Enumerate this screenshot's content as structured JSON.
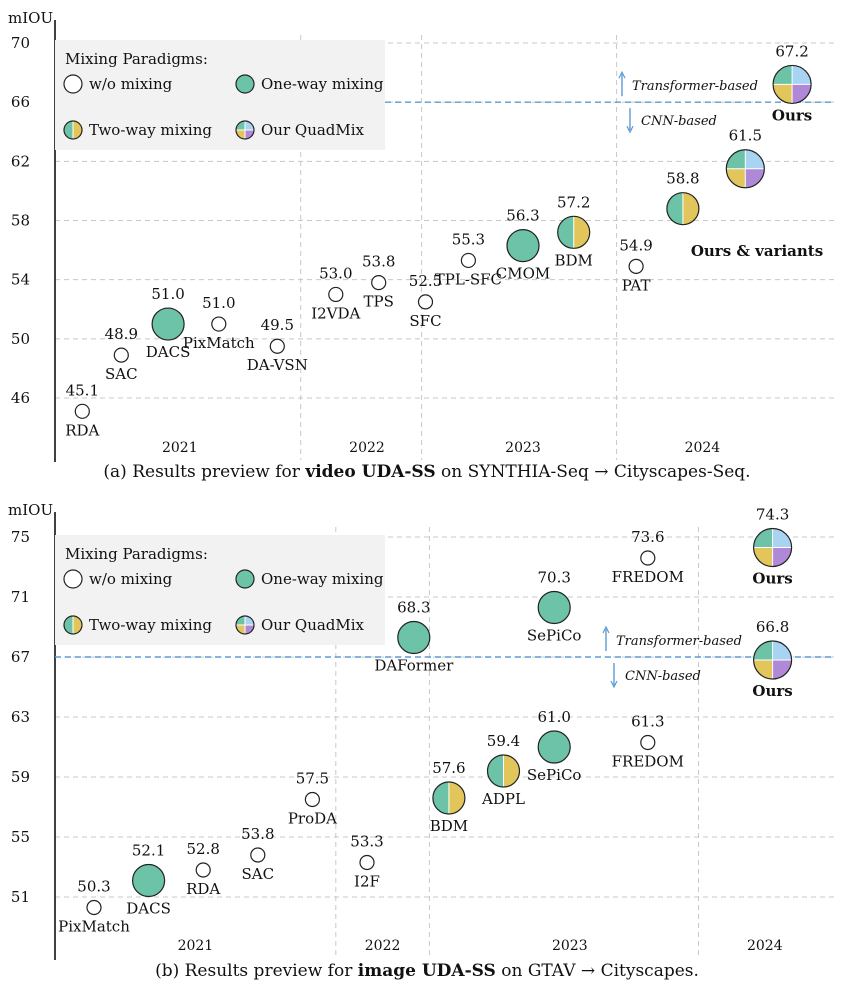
{
  "legend_heading": "Mixing Paradigms:",
  "legend_items": [
    {
      "label": "w/o mixing",
      "kind": "none"
    },
    {
      "label": "One-way mixing",
      "kind": "one"
    },
    {
      "label": "Two-way mixing",
      "kind": "two"
    },
    {
      "label": "Our QuadMix",
      "kind": "quad"
    }
  ],
  "colors": {
    "one_way": "#6cc3a7",
    "two_way_left": "#6cc3a7",
    "two_way_right": "#e2c65c",
    "quad_tl": "#6cc3a7",
    "quad_tr": "#a9d3f2",
    "quad_bl": "#e2c65c",
    "quad_br": "#b088d8",
    "threshold": "#5b9bd5",
    "grid": "#c8c8c8"
  },
  "chart_data": [
    {
      "type": "scatter",
      "ylabel": "mIOU",
      "ylim": [
        43.5,
        71
      ],
      "yticks": [
        46,
        50,
        54,
        58,
        62,
        66,
        70
      ],
      "xlim": [
        0,
        100
      ],
      "year_labels": [
        {
          "label": "2021",
          "x": 16
        },
        {
          "label": "2022",
          "x": 40
        },
        {
          "label": "2023",
          "x": 60
        },
        {
          "label": "2024",
          "x": 83
        }
      ],
      "year_dividers": [
        31.5,
        47,
        72
      ],
      "threshold": 66,
      "threshold_upper_label": "Transformer-based",
      "threshold_lower_label": "CNN-based",
      "points": [
        {
          "name": "RDA",
          "value": 45.1,
          "value_label": "45.1",
          "x": 3.5,
          "kind": "none",
          "size": "s"
        },
        {
          "name": "SAC",
          "value": 48.9,
          "value_label": "48.9",
          "x": 8.5,
          "kind": "none",
          "size": "s"
        },
        {
          "name": "DACS",
          "value": 51.0,
          "value_label": "51.0",
          "x": 14.5,
          "kind": "one",
          "size": "l"
        },
        {
          "name": "PixMatch",
          "value": 51.0,
          "value_label": "51.0",
          "x": 21,
          "kind": "none",
          "size": "s"
        },
        {
          "name": "DA-VSN",
          "value": 49.5,
          "value_label": "49.5",
          "x": 28.5,
          "kind": "none",
          "size": "s"
        },
        {
          "name": "I2VDA",
          "value": 53.0,
          "value_label": "53.0",
          "x": 36,
          "kind": "none",
          "size": "s"
        },
        {
          "name": "TPS",
          "value": 53.8,
          "value_label": "53.8",
          "x": 41.5,
          "kind": "none",
          "size": "s"
        },
        {
          "name": "SFC",
          "value": 52.5,
          "value_label": "52.5",
          "x": 47.5,
          "kind": "none",
          "size": "s"
        },
        {
          "name": "TPL-SFC",
          "value": 55.3,
          "value_label": "55.3",
          "x": 53,
          "kind": "none",
          "size": "s"
        },
        {
          "name": "CMOM",
          "value": 56.3,
          "value_label": "56.3",
          "x": 60,
          "kind": "one",
          "size": "l"
        },
        {
          "name": "BDM",
          "value": 57.2,
          "value_label": "57.2",
          "x": 66.5,
          "kind": "two",
          "size": "l"
        },
        {
          "name": "PAT",
          "value": 54.9,
          "value_label": "54.9",
          "x": 74.5,
          "kind": "none",
          "size": "s"
        },
        {
          "name": "",
          "value": 58.8,
          "value_label": "58.8",
          "x": 80.5,
          "kind": "quad2",
          "size": "l"
        },
        {
          "name": "",
          "value": 61.5,
          "value_label": "61.5",
          "x": 88.5,
          "kind": "quad",
          "size": "xl"
        },
        {
          "name": "Ours",
          "value": 67.2,
          "value_label": "67.2",
          "x": 94.5,
          "kind": "quad",
          "size": "xl"
        }
      ],
      "group_label": "Ours & variants",
      "caption": {
        "prefix": "(a) Results preview for ",
        "bold": "video UDA-SS",
        "suffix": " on SYNTHIA-Seq → Cityscapes-Seq."
      }
    },
    {
      "type": "scatter",
      "ylabel": "mIOU",
      "ylim": [
        48.5,
        76
      ],
      "yticks": [
        51,
        55,
        59,
        63,
        67,
        71,
        75
      ],
      "xlim": [
        0,
        100
      ],
      "year_labels": [
        {
          "label": "2021",
          "x": 18
        },
        {
          "label": "2022",
          "x": 42
        },
        {
          "label": "2023",
          "x": 66
        },
        {
          "label": "2024",
          "x": 91
        }
      ],
      "year_dividers": [
        36,
        48,
        82.5
      ],
      "threshold": 67,
      "threshold_upper_label": "Transformer-based",
      "threshold_lower_label": "CNN-based",
      "points": [
        {
          "name": "PixMatch",
          "value": 50.3,
          "value_label": "50.3",
          "x": 5,
          "kind": "none",
          "size": "s"
        },
        {
          "name": "DACS",
          "value": 52.1,
          "value_label": "52.1",
          "x": 12,
          "kind": "one",
          "size": "l"
        },
        {
          "name": "RDA",
          "value": 52.8,
          "value_label": "52.8",
          "x": 19,
          "kind": "none",
          "size": "s"
        },
        {
          "name": "SAC",
          "value": 53.8,
          "value_label": "53.8",
          "x": 26,
          "kind": "none",
          "size": "s"
        },
        {
          "name": "ProDA",
          "value": 57.5,
          "value_label": "57.5",
          "x": 33,
          "kind": "none",
          "size": "s"
        },
        {
          "name": "I2F",
          "value": 53.3,
          "value_label": "53.3",
          "x": 40,
          "kind": "none",
          "size": "s"
        },
        {
          "name": "DAFormer",
          "value": 68.3,
          "value_label": "68.3",
          "x": 46,
          "kind": "one",
          "size": "l"
        },
        {
          "name": "BDM",
          "value": 57.6,
          "value_label": "57.6",
          "x": 50.5,
          "kind": "two",
          "size": "l"
        },
        {
          "name": "ADPL",
          "value": 59.4,
          "value_label": "59.4",
          "x": 57.5,
          "kind": "two",
          "size": "l"
        },
        {
          "name": "SePiCo",
          "value": 61.0,
          "value_label": "61.0",
          "x": 64,
          "kind": "one",
          "size": "l"
        },
        {
          "name": "SePiCo",
          "value": 70.3,
          "value_label": "70.3",
          "x": 64,
          "kind": "one",
          "size": "l"
        },
        {
          "name": "FREDOM",
          "value": 61.3,
          "value_label": "61.3",
          "x": 76,
          "kind": "none",
          "size": "s"
        },
        {
          "name": "FREDOM",
          "value": 73.6,
          "value_label": "73.6",
          "x": 76,
          "kind": "none",
          "size": "s"
        },
        {
          "name": "Ours",
          "value": 66.8,
          "value_label": "66.8",
          "x": 92,
          "kind": "quad",
          "size": "xl"
        },
        {
          "name": "Ours",
          "value": 74.3,
          "value_label": "74.3",
          "x": 92,
          "kind": "quad",
          "size": "xl"
        }
      ],
      "caption": {
        "prefix": "(b) Results preview for ",
        "bold": "image UDA-SS",
        "suffix": " on GTAV → Cityscapes."
      }
    }
  ]
}
